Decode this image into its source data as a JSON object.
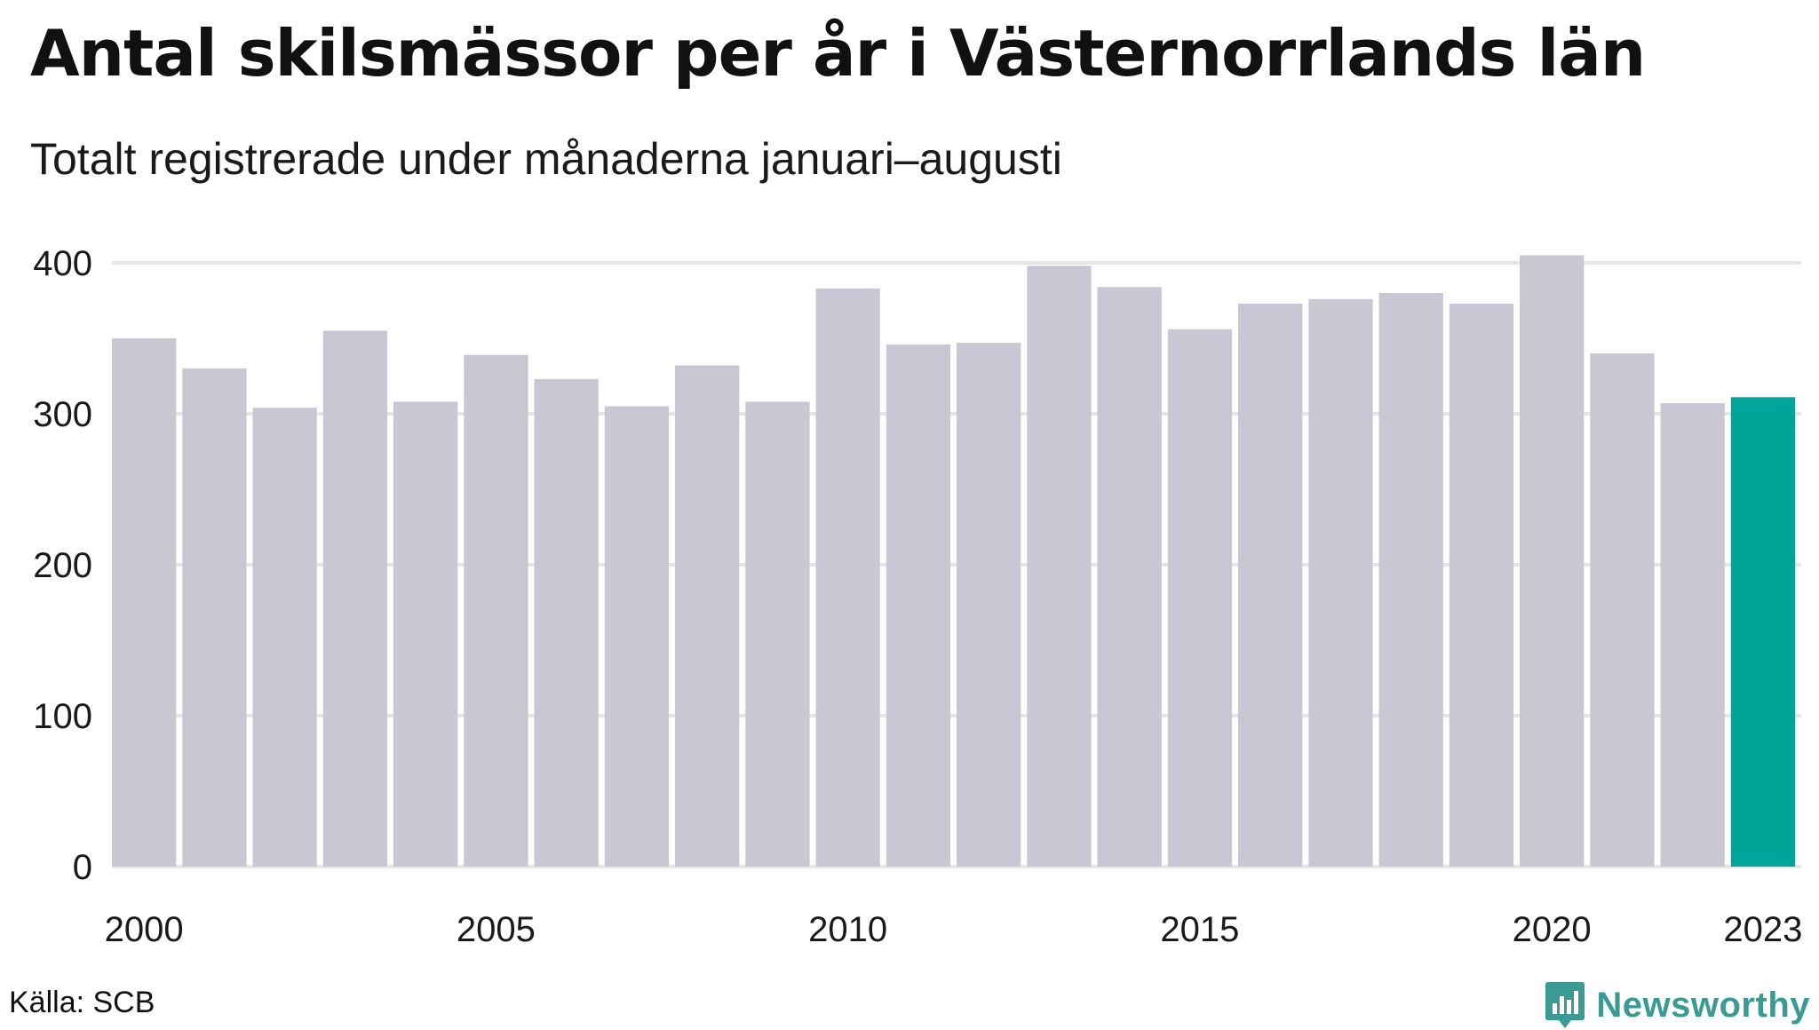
{
  "header": {
    "title": "Antal skilsmässor per år i Västernorrlands län",
    "subtitle": "Totalt registrerade under månaderna januari–augusti"
  },
  "footer": {
    "source": "Källa: SCB",
    "brand": "Newsworthy",
    "brand_icon": "bar-chart-speech-bubble-icon"
  },
  "colors": {
    "bar": "#c8c7d3",
    "highlight": "#00a59a",
    "grid": "#e5e5e8",
    "text": "#1a1a1a",
    "brand": "#3b9a93"
  },
  "chart_data": {
    "type": "bar",
    "title": "Antal skilsmässor per år i Västernorrlands län",
    "subtitle": "Totalt registrerade under månaderna januari–augusti",
    "xlabel": "",
    "ylabel": "",
    "categories": [
      "2000",
      "2001",
      "2002",
      "2003",
      "2004",
      "2005",
      "2006",
      "2007",
      "2008",
      "2009",
      "2010",
      "2011",
      "2012",
      "2013",
      "2014",
      "2015",
      "2016",
      "2017",
      "2018",
      "2019",
      "2020",
      "2021",
      "2022",
      "2023"
    ],
    "values": [
      350,
      330,
      304,
      355,
      308,
      339,
      323,
      305,
      332,
      308,
      383,
      346,
      347,
      398,
      384,
      356,
      373,
      376,
      380,
      373,
      405,
      340,
      307,
      311
    ],
    "highlight_category": "2023",
    "x_tick_labels": [
      "2000",
      "2005",
      "2010",
      "2015",
      "2020",
      "2023"
    ],
    "y_ticks": [
      0,
      100,
      200,
      300,
      400
    ],
    "ylim": [
      0,
      400
    ],
    "grid": true,
    "legend": "none"
  }
}
